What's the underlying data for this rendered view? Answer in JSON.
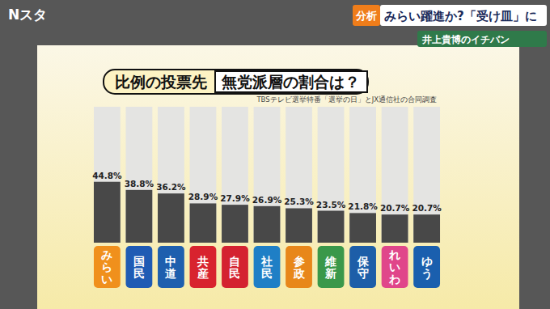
{
  "broadcast": {
    "logo": "Nスタ",
    "tag": "分析",
    "headline": "みらい躍進か?「受け皿」に",
    "corner": "井上貴博のイチバン"
  },
  "chart_data": {
    "type": "bar",
    "title": "比例の投票先",
    "subtitle": "無党派層の割合は？",
    "annotations": [
      "TBSテレビ選挙特番「選挙の日」とJX通信社の合同調査"
    ],
    "categories": [
      "みらい",
      "国民",
      "中道",
      "共産",
      "自民",
      "社民",
      "参政",
      "維新",
      "保守",
      "れいわ",
      "ゆう"
    ],
    "values": [
      44.8,
      38.8,
      36.2,
      28.9,
      27.9,
      26.9,
      25.3,
      23.5,
      21.8,
      20.7,
      20.7
    ],
    "value_labels": [
      "44.8%",
      "38.8%",
      "36.2%",
      "28.9%",
      "27.9%",
      "26.9%",
      "25.3%",
      "23.5%",
      "21.8%",
      "20.7%",
      "20.7%"
    ],
    "color": "#484848",
    "colors": [
      "#f0901c",
      "#1f5bb4",
      "#1e5fae",
      "#d8232e",
      "#d42230",
      "#1f7fc6",
      "#e8871a",
      "#3a984a",
      "#1d5ea8",
      "#e0468a",
      "#1a5fae"
    ],
    "ylim": [
      0,
      100
    ],
    "grid": false,
    "data_labels": true,
    "tick_labels": false
  }
}
